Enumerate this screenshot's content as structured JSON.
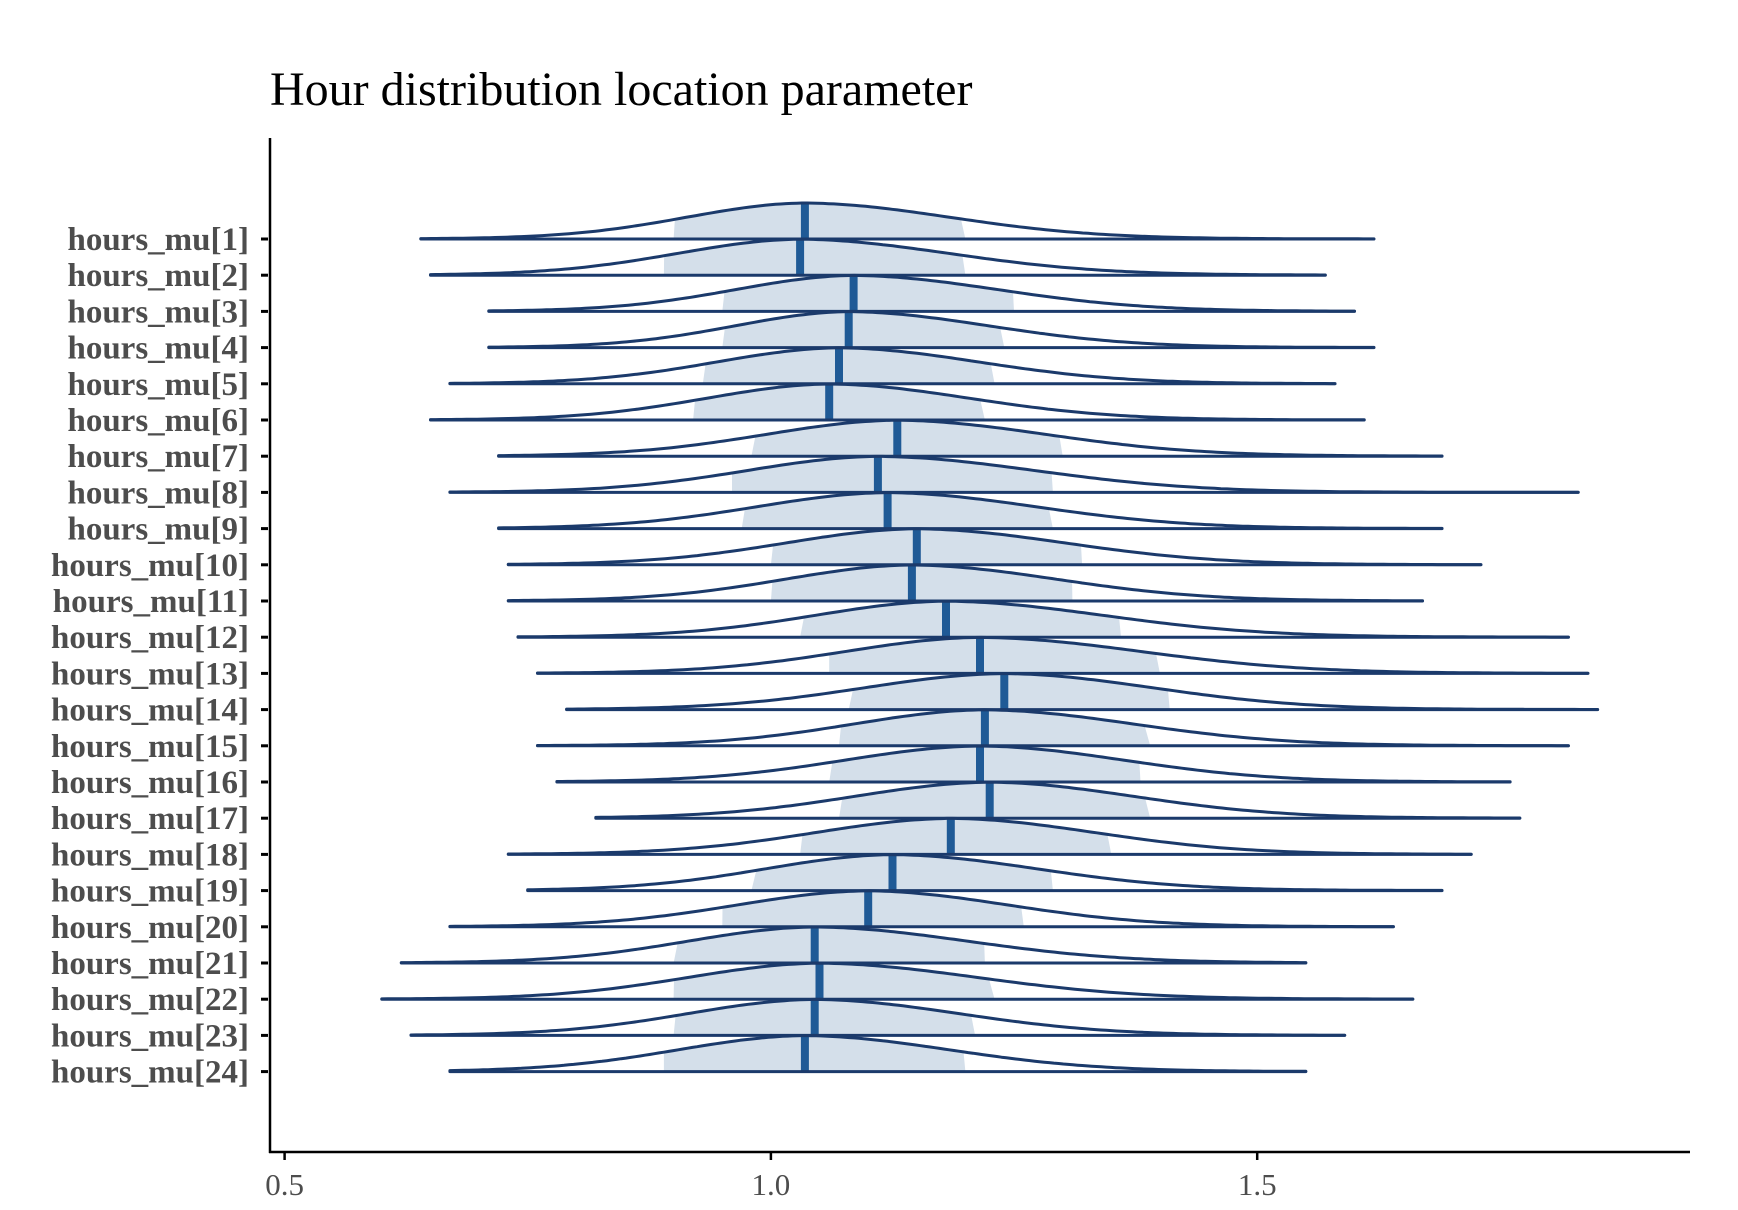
{
  "chart_data": {
    "type": "ridgeline",
    "title": "Hour distribution location parameter",
    "xlabel": "",
    "ylabel": "",
    "xlim": [
      0.485,
      1.945
    ],
    "x_ticks": [
      0.5,
      1.0,
      1.5
    ],
    "x_tick_labels": [
      "0.5",
      "1.0",
      "1.5"
    ],
    "grid": false,
    "colors": {
      "outline": "#1b3a6b",
      "fill_inner": "#d4dfea",
      "median": "#1f5a96",
      "axis": "#000000",
      "label": "#4d4d4d"
    },
    "series": [
      {
        "name": "hours_mu[1]",
        "min": 0.64,
        "max": 1.62,
        "q_lo": 0.9,
        "median": 1.035,
        "q_hi": 1.2
      },
      {
        "name": "hours_mu[2]",
        "min": 0.65,
        "max": 1.57,
        "q_lo": 0.89,
        "median": 1.03,
        "q_hi": 1.2
      },
      {
        "name": "hours_mu[3]",
        "min": 0.71,
        "max": 1.6,
        "q_lo": 0.95,
        "median": 1.085,
        "q_hi": 1.25
      },
      {
        "name": "hours_mu[4]",
        "min": 0.71,
        "max": 1.62,
        "q_lo": 0.95,
        "median": 1.08,
        "q_hi": 1.24
      },
      {
        "name": "hours_mu[5]",
        "min": 0.67,
        "max": 1.58,
        "q_lo": 0.93,
        "median": 1.07,
        "q_hi": 1.23
      },
      {
        "name": "hours_mu[6]",
        "min": 0.65,
        "max": 1.61,
        "q_lo": 0.92,
        "median": 1.06,
        "q_hi": 1.22
      },
      {
        "name": "hours_mu[7]",
        "min": 0.72,
        "max": 1.69,
        "q_lo": 0.98,
        "median": 1.13,
        "q_hi": 1.3
      },
      {
        "name": "hours_mu[8]",
        "min": 0.67,
        "max": 1.83,
        "q_lo": 0.96,
        "median": 1.11,
        "q_hi": 1.29
      },
      {
        "name": "hours_mu[9]",
        "min": 0.72,
        "max": 1.69,
        "q_lo": 0.97,
        "median": 1.12,
        "q_hi": 1.29
      },
      {
        "name": "hours_mu[10]",
        "min": 0.73,
        "max": 1.73,
        "q_lo": 1.0,
        "median": 1.15,
        "q_hi": 1.32
      },
      {
        "name": "hours_mu[11]",
        "min": 0.73,
        "max": 1.67,
        "q_lo": 1.0,
        "median": 1.145,
        "q_hi": 1.31
      },
      {
        "name": "hours_mu[12]",
        "min": 0.74,
        "max": 1.82,
        "q_lo": 1.03,
        "median": 1.18,
        "q_hi": 1.36
      },
      {
        "name": "hours_mu[13]",
        "min": 0.76,
        "max": 1.84,
        "q_lo": 1.06,
        "median": 1.215,
        "q_hi": 1.4
      },
      {
        "name": "hours_mu[14]",
        "min": 0.79,
        "max": 1.85,
        "q_lo": 1.08,
        "median": 1.24,
        "q_hi": 1.41
      },
      {
        "name": "hours_mu[15]",
        "min": 0.76,
        "max": 1.82,
        "q_lo": 1.07,
        "median": 1.22,
        "q_hi": 1.39
      },
      {
        "name": "hours_mu[16]",
        "min": 0.78,
        "max": 1.76,
        "q_lo": 1.06,
        "median": 1.215,
        "q_hi": 1.38
      },
      {
        "name": "hours_mu[17]",
        "min": 0.82,
        "max": 1.77,
        "q_lo": 1.07,
        "median": 1.225,
        "q_hi": 1.39
      },
      {
        "name": "hours_mu[18]",
        "min": 0.73,
        "max": 1.72,
        "q_lo": 1.03,
        "median": 1.185,
        "q_hi": 1.35
      },
      {
        "name": "hours_mu[19]",
        "min": 0.75,
        "max": 1.69,
        "q_lo": 0.98,
        "median": 1.125,
        "q_hi": 1.29
      },
      {
        "name": "hours_mu[20]",
        "min": 0.67,
        "max": 1.64,
        "q_lo": 0.95,
        "median": 1.1,
        "q_hi": 1.26
      },
      {
        "name": "hours_mu[21]",
        "min": 0.62,
        "max": 1.55,
        "q_lo": 0.9,
        "median": 1.045,
        "q_hi": 1.22
      },
      {
        "name": "hours_mu[22]",
        "min": 0.6,
        "max": 1.66,
        "q_lo": 0.9,
        "median": 1.05,
        "q_hi": 1.23
      },
      {
        "name": "hours_mu[23]",
        "min": 0.63,
        "max": 1.59,
        "q_lo": 0.9,
        "median": 1.045,
        "q_hi": 1.21
      },
      {
        "name": "hours_mu[24]",
        "min": 0.67,
        "max": 1.55,
        "q_lo": 0.89,
        "median": 1.035,
        "q_hi": 1.2
      }
    ]
  }
}
